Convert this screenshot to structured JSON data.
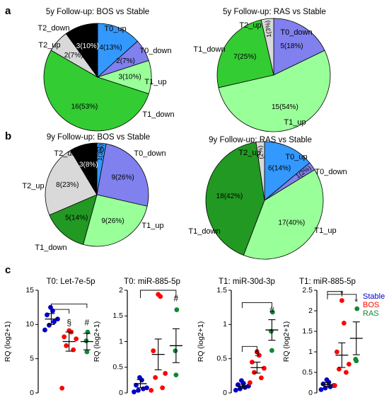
{
  "panel_letters": [
    "a",
    "b",
    "c"
  ],
  "colors": {
    "T0_up": "#3399ff",
    "T0_down": "#8080ee",
    "T1_up": "#99ff99",
    "T1_down": "#33cc33",
    "T1_down_dark": "#229922",
    "T2_up": "#d9d9d9",
    "T2_down": "#000000",
    "Stable": "#0000cc",
    "BOS": "#ff0000",
    "RAS": "#118833"
  },
  "chart_data": [
    {
      "type": "pie",
      "title": "5y Follow-up: BOS vs Stable",
      "slices": [
        {
          "name": "T0_up",
          "count": 4,
          "percent": 13,
          "label": "4(13%)",
          "color": "T0_up"
        },
        {
          "name": "T0_down",
          "count": 2,
          "percent": 7,
          "label": "2(7%)",
          "color": "T0_down"
        },
        {
          "name": "T1_up",
          "count": 3,
          "percent": 10,
          "label": "3(10%)",
          "color": "T1_up"
        },
        {
          "name": "T1_down",
          "count": 16,
          "percent": 53,
          "label": "16(53%)",
          "color": "T1_down"
        },
        {
          "name": "T2_up",
          "count": 2,
          "percent": 7,
          "label": "2(7%)",
          "color": "T2_up"
        },
        {
          "name": "T2_down",
          "count": 3,
          "percent": 10,
          "label": "3(10%)",
          "color": "T2_down"
        }
      ]
    },
    {
      "type": "pie",
      "title": "5y Follow-up: RAS vs Stable",
      "slices": [
        {
          "name": "T0_down",
          "count": 5,
          "percent": 18,
          "label": "5(18%)",
          "color": "T0_down"
        },
        {
          "name": "T1_up",
          "count": 15,
          "percent": 54,
          "label": "15(54%)",
          "color": "T1_up"
        },
        {
          "name": "T1_down",
          "count": 7,
          "percent": 25,
          "label": "7(25%)",
          "color": "T1_down"
        },
        {
          "name": "T2_up",
          "count": 1,
          "percent": 3,
          "label": "1(3%)",
          "color": "T2_up"
        }
      ]
    },
    {
      "type": "pie",
      "title": "9y Follow-up: BOS vs Stable",
      "slices": [
        {
          "name": "T0_up",
          "count": 1,
          "percent": 3,
          "label": "1(3%)",
          "color": "T0_up"
        },
        {
          "name": "T0_down",
          "count": 9,
          "percent": 26,
          "label": "9(26%)",
          "color": "T0_down"
        },
        {
          "name": "T1_up",
          "count": 9,
          "percent": 26,
          "label": "9(26%)",
          "color": "T1_up"
        },
        {
          "name": "T1_down",
          "count": 5,
          "percent": 14,
          "label": "5(14%)",
          "color": "T1_down_dark"
        },
        {
          "name": "T2_up",
          "count": 8,
          "percent": 23,
          "label": "8(23%)",
          "color": "T2_up"
        },
        {
          "name": "T2_down",
          "count": 3,
          "percent": 8,
          "label": "3(8%)",
          "color": "T2_down"
        }
      ]
    },
    {
      "type": "pie",
      "title": "9y Follow-up: RAS vs Stable",
      "slices": [
        {
          "name": "T0_up",
          "count": 6,
          "percent": 14,
          "label": "6(14%)",
          "color": "T0_up"
        },
        {
          "name": "T0_down",
          "count": 1,
          "percent": 2,
          "label": "1(2%)",
          "color": "T0_down"
        },
        {
          "name": "T1_up",
          "count": 17,
          "percent": 40,
          "label": "17(40%)",
          "color": "T1_up"
        },
        {
          "name": "T1_down",
          "count": 18,
          "percent": 42,
          "label": "18(42%)",
          "color": "T1_down_dark"
        },
        {
          "name": "T2_up",
          "count": 1,
          "percent": 2,
          "label": "(2%)",
          "color": "T2_up"
        }
      ]
    },
    {
      "type": "scatter",
      "title": "T0: Let-7e-5p",
      "ylabel": "RQ (log2+1)",
      "ylim": [
        0,
        15
      ],
      "yticks": [
        0,
        5,
        10,
        15
      ],
      "groups": [
        {
          "name": "Stable",
          "color": "Stable",
          "mean": 10.8,
          "sem": 0.8,
          "values": [
            9.2,
            9.9,
            10.4,
            10.8,
            11.4,
            12.0,
            12.5
          ]
        },
        {
          "name": "BOS",
          "color": "BOS",
          "mean": 7.5,
          "sem": 1.4,
          "values": [
            0.7,
            6.3,
            6.9,
            7.9,
            8.2,
            8.9,
            9.1
          ]
        },
        {
          "name": "RAS",
          "color": "RAS",
          "mean": 7.5,
          "sem": 1.2,
          "values": [
            6.0,
            7.6,
            8.9
          ]
        }
      ],
      "annotations": [
        {
          "text": "§",
          "group": 1,
          "y": 10.2
        },
        {
          "text": "#",
          "group": 2,
          "y": 10.2
        }
      ],
      "brackets": [
        {
          "from": 0,
          "to": 2,
          "y": 13.0,
          "drop": 0.6
        },
        {
          "from": 0,
          "to": 1,
          "y": 12.2,
          "drop": 0.6
        }
      ]
    },
    {
      "type": "scatter",
      "title": "T0: miR-885-5p",
      "ylabel": "RQ (log2+1)",
      "ylim": [
        0,
        2
      ],
      "yticks": [
        0,
        0.5,
        1.0,
        1.5,
        2.0
      ],
      "groups": [
        {
          "name": "Stable",
          "color": "Stable",
          "mean": 0.18,
          "sem": 0.08,
          "values": [
            0.02,
            0.05,
            0.08,
            0.1,
            0.15,
            0.25,
            0.3
          ]
        },
        {
          "name": "BOS",
          "color": "BOS",
          "mean": 0.75,
          "sem": 0.3,
          "values": [
            0.05,
            0.1,
            0.3,
            0.38,
            0.82,
            1.88,
            1.92
          ]
        },
        {
          "name": "RAS",
          "color": "RAS",
          "mean": 0.92,
          "sem": 0.33,
          "values": [
            0.35,
            0.82,
            1.62
          ]
        }
      ],
      "annotations": [
        {
          "text": "#",
          "group": 2,
          "y": 1.83
        }
      ],
      "brackets": [
        {
          "from": 0,
          "to": 2,
          "y": 2.0,
          "drop": 0.15
        }
      ]
    },
    {
      "type": "scatter",
      "title": "T1: miR-30d-3p",
      "ylabel": "RQ (log2+1)",
      "ylim": [
        0,
        1.5
      ],
      "yticks": [
        0,
        0.5,
        1.0,
        1.5
      ],
      "groups": [
        {
          "name": "Stable",
          "color": "Stable",
          "mean": 0.1,
          "sem": 0.03,
          "values": [
            0.04,
            0.06,
            0.08,
            0.1,
            0.12,
            0.14,
            0.18
          ]
        },
        {
          "name": "BOS",
          "color": "BOS",
          "mean": 0.37,
          "sem": 0.08,
          "values": [
            0.15,
            0.22,
            0.3,
            0.36,
            0.45,
            0.55,
            0.6
          ]
        },
        {
          "name": "RAS",
          "color": "RAS",
          "mean": 0.92,
          "sem": 0.15,
          "values": [
            0.62,
            0.9,
            1.18
          ]
        }
      ],
      "annotations": [
        {
          "text": "§",
          "group": 1,
          "y": 0.58
        },
        {
          "text": "#",
          "group": 2,
          "y": 1.2
        }
      ],
      "brackets": [
        {
          "from": 0,
          "to": 2,
          "y": 1.32,
          "drop": 0.08
        },
        {
          "from": 0,
          "to": 1,
          "y": 0.68,
          "drop": 0.08
        }
      ]
    },
    {
      "type": "scatter",
      "title": "T1: miR-885-5p",
      "ylabel": "RQ (log2+1)",
      "ylim": [
        0,
        2.5
      ],
      "yticks": [
        0,
        0.5,
        1.0,
        1.5,
        2.0,
        2.5
      ],
      "groups": [
        {
          "name": "Stable",
          "color": "Stable",
          "mean": 0.2,
          "sem": 0.05,
          "values": [
            0.08,
            0.12,
            0.15,
            0.18,
            0.22,
            0.26,
            0.32
          ]
        },
        {
          "name": "BOS",
          "color": "BOS",
          "mean": 0.92,
          "sem": 0.3,
          "values": [
            0.18,
            0.5,
            0.58,
            0.7,
            1.0,
            1.7,
            2.25
          ]
        },
        {
          "name": "RAS",
          "color": "RAS",
          "mean": 1.33,
          "sem": 0.4,
          "values": [
            0.78,
            0.82,
            2.05
          ]
        }
      ],
      "annotations": [
        {
          "text": "*",
          "group": 1,
          "y": 2.4
        },
        {
          "text": "*",
          "group": 2,
          "y": 2.2
        }
      ],
      "brackets": [
        {
          "from": 0,
          "to": 2,
          "y": 2.4,
          "drop": 0.12
        },
        {
          "from": 0,
          "to": 1,
          "y": 2.47,
          "drop": 0.12
        }
      ]
    }
  ],
  "legend": [
    {
      "label": "Stable",
      "color": "Stable"
    },
    {
      "label": "BOS",
      "color": "BOS"
    },
    {
      "label": "RAS",
      "color": "RAS"
    }
  ],
  "pie_label_text": {
    "a1": [
      "T0_up",
      "T0_down",
      "T1_up",
      "T1_down",
      "T2_up",
      "T2_down"
    ],
    "a2": [
      "T0_down",
      "T1_up",
      "T1_down",
      "T2_up"
    ],
    "b1": [
      "T0_up",
      "T0_down",
      "T1_up",
      "T1_down",
      "T2_up",
      "T2_down"
    ],
    "b2": [
      "T0_up",
      "T0_down",
      "T1_up",
      "T1_down",
      "T2_up"
    ]
  }
}
